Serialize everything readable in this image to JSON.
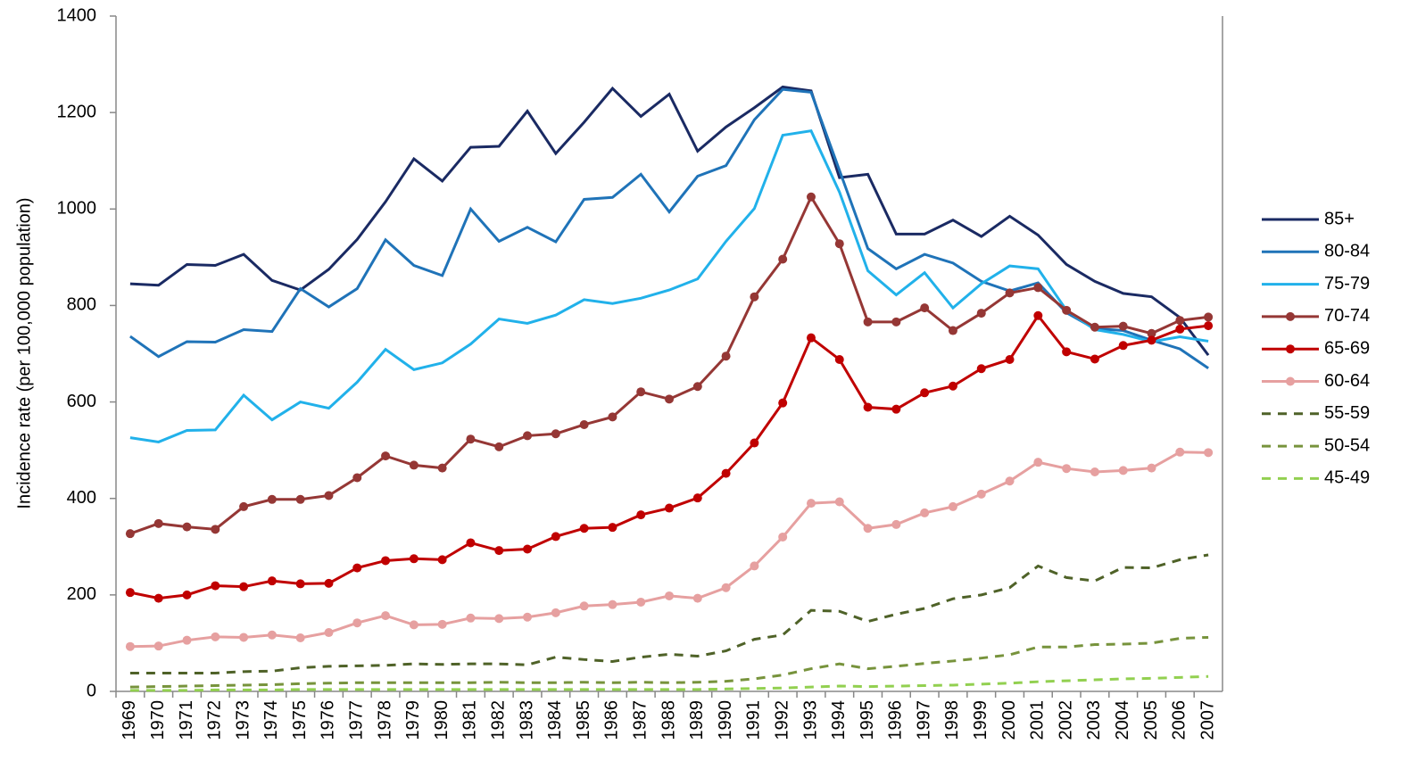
{
  "chart_data": {
    "type": "line",
    "y_label": "Incidence rate (per 100,000 population)",
    "categories": [
      "1969",
      "1970",
      "1971",
      "1972",
      "1973",
      "1974",
      "1975",
      "1976",
      "1977",
      "1978",
      "1979",
      "1980",
      "1981",
      "1982",
      "1983",
      "1984",
      "1985",
      "1986",
      "1987",
      "1988",
      "1989",
      "1990",
      "1991",
      "1992",
      "1993",
      "1994",
      "1995",
      "1996",
      "1997",
      "1998",
      "1999",
      "2000",
      "2001",
      "2002",
      "2003",
      "2004",
      "2005",
      "2006",
      "2007"
    ],
    "ylim": [
      0,
      1400
    ],
    "yticks": [
      0,
      200,
      400,
      600,
      800,
      1000,
      1200,
      1400
    ],
    "grid": false,
    "legend": "right",
    "series": [
      {
        "name": "85+",
        "color": "#1a2a63",
        "markers": false,
        "dashed": false,
        "values": [
          845,
          842,
          885,
          883,
          906,
          852,
          832,
          875,
          937,
          1015,
          1104,
          1058,
          1128,
          1130,
          1203,
          1115,
          1180,
          1250,
          1192,
          1238,
          1120,
          1170,
          1210,
          1253,
          1245,
          1065,
          1072,
          948,
          948,
          977,
          943,
          985,
          946,
          885,
          850,
          825,
          818,
          775,
          697
        ]
      },
      {
        "name": "80-84",
        "color": "#1f73b8",
        "markers": false,
        "dashed": false,
        "values": [
          736,
          694,
          725,
          724,
          750,
          746,
          835,
          797,
          835,
          936,
          883,
          862,
          1000,
          933,
          962,
          932,
          1020,
          1024,
          1072,
          994,
          1068,
          1090,
          1185,
          1248,
          1242,
          1080,
          918,
          876,
          906,
          888,
          850,
          830,
          847,
          785,
          752,
          748,
          728,
          710,
          670
        ]
      },
      {
        "name": "75-79",
        "color": "#21b1ea",
        "markers": false,
        "dashed": false,
        "values": [
          526,
          517,
          541,
          542,
          614,
          563,
          600,
          587,
          641,
          709,
          667,
          681,
          720,
          772,
          763,
          780,
          812,
          804,
          815,
          832,
          855,
          933,
          1001,
          1153,
          1162,
          1035,
          872,
          822,
          868,
          795,
          845,
          882,
          876,
          790,
          750,
          740,
          725,
          735,
          726
        ]
      },
      {
        "name": "70-74",
        "color": "#953735",
        "markers": true,
        "dashed": false,
        "values": [
          327,
          348,
          341,
          336,
          383,
          398,
          398,
          406,
          443,
          488,
          469,
          463,
          523,
          507,
          530,
          534,
          553,
          569,
          621,
          606,
          632,
          695,
          818,
          896,
          1025,
          928,
          766,
          766,
          795,
          748,
          784,
          826,
          837,
          790,
          755,
          757,
          742,
          769,
          776
        ]
      },
      {
        "name": "65-69",
        "color": "#c00000",
        "markers": true,
        "dashed": false,
        "values": [
          205,
          193,
          200,
          219,
          217,
          229,
          223,
          224,
          256,
          271,
          275,
          273,
          308,
          292,
          295,
          321,
          338,
          340,
          366,
          380,
          401,
          452,
          515,
          598,
          733,
          688,
          589,
          585,
          619,
          633,
          669,
          688,
          779,
          704,
          689,
          717,
          728,
          751,
          758
        ]
      },
      {
        "name": "60-64",
        "color": "#e6a0a0",
        "markers": true,
        "dashed": false,
        "values": [
          93,
          94,
          106,
          113,
          112,
          117,
          111,
          122,
          142,
          157,
          138,
          139,
          152,
          151,
          154,
          163,
          177,
          180,
          185,
          198,
          193,
          215,
          260,
          320,
          390,
          393,
          338,
          346,
          370,
          383,
          409,
          436,
          475,
          462,
          455,
          458,
          463,
          496,
          495
        ]
      },
      {
        "name": "55-59",
        "color": "#4f6228",
        "markers": false,
        "dashed": true,
        "values": [
          38,
          38,
          38,
          38,
          41,
          42,
          49,
          52,
          53,
          54,
          57,
          56,
          57,
          57,
          55,
          71,
          66,
          62,
          71,
          77,
          73,
          84,
          108,
          117,
          168,
          166,
          145,
          160,
          172,
          192,
          200,
          215,
          260,
          236,
          229,
          257,
          256,
          273,
          283
        ]
      },
      {
        "name": "50-54",
        "color": "#77933c",
        "markers": false,
        "dashed": true,
        "values": [
          9,
          10,
          11,
          12,
          13,
          14,
          16,
          17,
          18,
          18,
          18,
          18,
          18,
          19,
          18,
          18,
          19,
          18,
          19,
          18,
          19,
          21,
          26,
          34,
          47,
          57,
          47,
          52,
          58,
          63,
          69,
          76,
          92,
          92,
          97,
          98,
          100,
          110,
          112
        ]
      },
      {
        "name": "45-49",
        "color": "#92d050",
        "markers": false,
        "dashed": true,
        "values": [
          2,
          2,
          2,
          3,
          3,
          3,
          4,
          4,
          4,
          4,
          4,
          4,
          4,
          4,
          4,
          4,
          4,
          4,
          4,
          4,
          4,
          5,
          6,
          7,
          9,
          11,
          10,
          11,
          12,
          13,
          15,
          17,
          20,
          22,
          24,
          26,
          27,
          29,
          31
        ]
      }
    ]
  }
}
